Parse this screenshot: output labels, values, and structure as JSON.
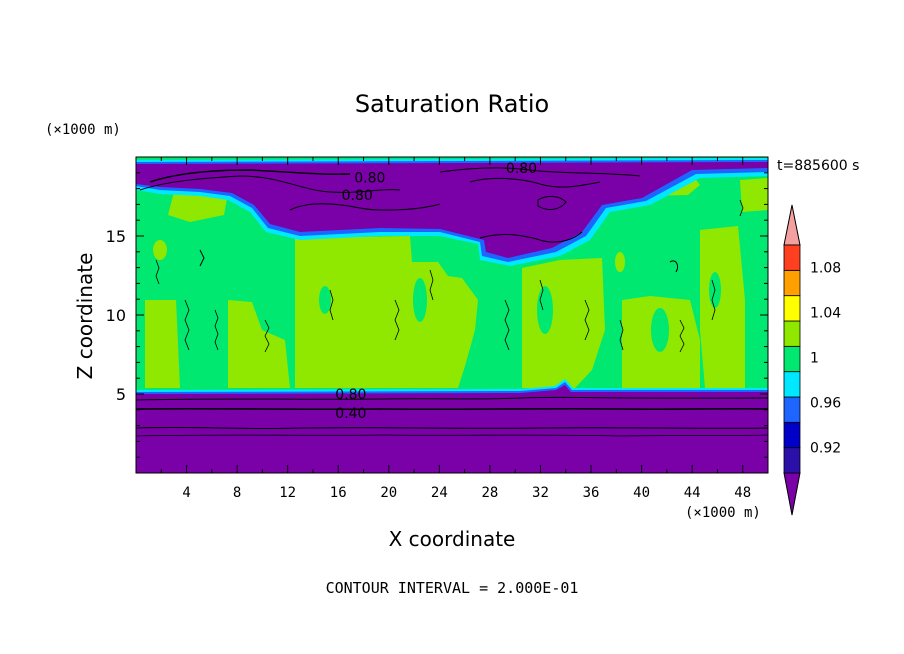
{
  "chart_data": {
    "type": "heatmap",
    "title": "Saturation Ratio",
    "xlabel": "X coordinate",
    "ylabel": "Z coordinate",
    "x_unit": "(×1000 m)",
    "y_unit": "(×1000 m)",
    "time_label": "t=885600 s",
    "footer": "CONTOUR INTERVAL = 2.000E-01",
    "xlim": [
      0,
      50
    ],
    "ylim": [
      0,
      20
    ],
    "x_ticks": [
      4,
      8,
      12,
      16,
      20,
      24,
      28,
      32,
      36,
      40,
      44,
      48
    ],
    "y_ticks": [
      5,
      10,
      15
    ],
    "grid": false,
    "colorbar": {
      "levels": [
        "<0.92",
        "0.92-0.94",
        "0.94-0.96",
        "0.96-0.98",
        "0.98-1",
        "1-1.02",
        "1.02-1.04",
        "1.04-1.06",
        "1.06-1.08",
        "1.08-1.10",
        ">1.10"
      ],
      "colors": [
        "#7a00a8",
        "#2a10a8",
        "#0000c8",
        "#1e64ff",
        "#00e8ff",
        "#00e870",
        "#90e800",
        "#ffff00",
        "#ffa000",
        "#ff4020",
        "#f5a0a0"
      ],
      "tick_labels": [
        "0.92",
        "0.96",
        "1",
        "1.04",
        "1.08"
      ],
      "tick_values": [
        0.92,
        0.96,
        1.0,
        1.04,
        1.08
      ],
      "min": 0.9,
      "max": 1.1
    },
    "contour_labels": [
      {
        "text": "0.80",
        "x": 18.5,
        "z": 18.7
      },
      {
        "text": "0.80",
        "x": 17.5,
        "z": 17.6
      },
      {
        "text": "0.80",
        "x": 30.5,
        "z": 19.3
      },
      {
        "text": "0.80",
        "x": 17.0,
        "z": 5.0
      },
      {
        "text": "0.40",
        "x": 17.0,
        "z": 3.8
      }
    ]
  }
}
